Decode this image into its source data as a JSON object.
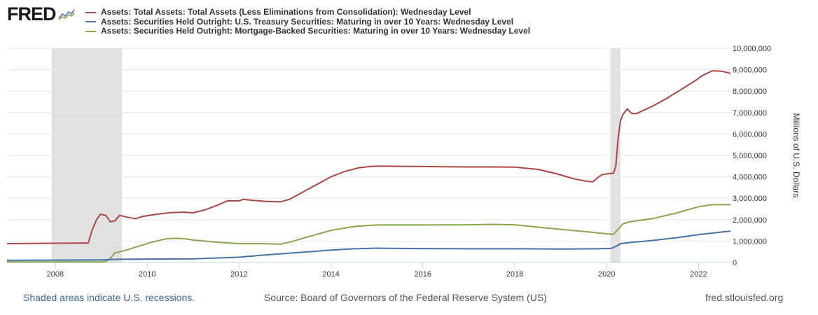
{
  "brand": {
    "name": "FRED",
    "logo_icon": "line-chart-icon"
  },
  "chart_data": {
    "type": "line",
    "title": "",
    "xlabel": "",
    "ylabel": "Millions of U.S. Dollars",
    "xlim": [
      2006.95,
      2022.71
    ],
    "ylim": [
      0,
      10000000
    ],
    "grid": true,
    "legend_position": "top",
    "x_ticks": [
      2008,
      2010,
      2012,
      2014,
      2016,
      2018,
      2020,
      2022
    ],
    "x_tick_labels": [
      "2008",
      "2010",
      "2012",
      "2014",
      "2016",
      "2018",
      "2020",
      "2022"
    ],
    "y_ticks": [
      0,
      1000000,
      2000000,
      3000000,
      4000000,
      5000000,
      6000000,
      7000000,
      8000000,
      9000000,
      10000000
    ],
    "y_tick_labels": [
      "0",
      "1,000,000",
      "2,000,000",
      "3,000,000",
      "4,000,000",
      "5,000,000",
      "6,000,000",
      "7,000,000",
      "8,000,000",
      "9,000,000",
      "10,000,000"
    ],
    "recessions": [
      {
        "start": 2007.92,
        "end": 2009.45
      },
      {
        "start": 2020.08,
        "end": 2020.3
      }
    ],
    "series": [
      {
        "name": "Assets: Total Assets: Total Assets (Less Eliminations from Consolidation): Wednesday Level",
        "color": "#aa4643",
        "x": [
          2006.95,
          2007.5,
          2008.0,
          2008.5,
          2008.72,
          2008.8,
          2008.9,
          2008.98,
          2009.1,
          2009.2,
          2009.3,
          2009.4,
          2009.5,
          2009.6,
          2009.75,
          2009.9,
          2010.2,
          2010.5,
          2010.8,
          2011.0,
          2011.25,
          2011.5,
          2011.75,
          2012.0,
          2012.1,
          2012.3,
          2012.6,
          2012.9,
          2013.1,
          2013.4,
          2013.7,
          2014.0,
          2014.3,
          2014.6,
          2014.85,
          2015.0,
          2015.5,
          2016.0,
          2016.5,
          2017.0,
          2017.5,
          2018.0,
          2018.5,
          2018.9,
          2019.3,
          2019.6,
          2019.7,
          2019.8,
          2019.9,
          2020.05,
          2020.15,
          2020.2,
          2020.25,
          2020.3,
          2020.35,
          2020.45,
          2020.55,
          2020.65,
          2020.8,
          2021.0,
          2021.3,
          2021.6,
          2021.9,
          2022.1,
          2022.3,
          2022.5,
          2022.7
        ],
        "values": [
          880000,
          890000,
          900000,
          910000,
          910000,
          1500000,
          2000000,
          2250000,
          2200000,
          1900000,
          1950000,
          2200000,
          2150000,
          2100000,
          2050000,
          2150000,
          2250000,
          2330000,
          2350000,
          2320000,
          2450000,
          2650000,
          2880000,
          2880000,
          2950000,
          2900000,
          2850000,
          2830000,
          2950000,
          3300000,
          3650000,
          4000000,
          4250000,
          4420000,
          4480000,
          4500000,
          4490000,
          4480000,
          4470000,
          4460000,
          4460000,
          4450000,
          4350000,
          4150000,
          3900000,
          3780000,
          3770000,
          3950000,
          4100000,
          4150000,
          4170000,
          4500000,
          5800000,
          6600000,
          6900000,
          7170000,
          6950000,
          6950000,
          7100000,
          7300000,
          7650000,
          8050000,
          8450000,
          8750000,
          8950000,
          8930000,
          8830000
        ]
      },
      {
        "name": "Assets: Securities Held Outright: U.S. Treasury Securities: Maturing in over 10 Years: Wednesday Level",
        "color": "#4572a7",
        "x": [
          2006.95,
          2008.0,
          2009.0,
          2009.4,
          2010.0,
          2011.0,
          2011.5,
          2012.0,
          2012.5,
          2013.0,
          2013.5,
          2014.0,
          2014.5,
          2015.0,
          2015.3,
          2016.0,
          2017.0,
          2018.0,
          2019.0,
          2019.8,
          2020.1,
          2020.2,
          2020.3,
          2020.5,
          2021.0,
          2021.5,
          2022.0,
          2022.5,
          2022.7
        ],
        "values": [
          100000,
          110000,
          120000,
          150000,
          160000,
          170000,
          210000,
          250000,
          340000,
          420000,
          500000,
          580000,
          640000,
          670000,
          660000,
          650000,
          640000,
          640000,
          630000,
          640000,
          660000,
          750000,
          880000,
          930000,
          1030000,
          1150000,
          1300000,
          1420000,
          1460000
        ]
      },
      {
        "name": "Assets: Securities Held Outright: Mortgage-Backed Securities: Maturing in over 10 Years: Wednesday Level",
        "color": "#89a54e",
        "x": [
          2006.95,
          2008.0,
          2009.0,
          2009.1,
          2009.2,
          2009.3,
          2009.5,
          2009.8,
          2010.1,
          2010.4,
          2010.6,
          2010.8,
          2011.0,
          2011.5,
          2012.0,
          2012.5,
          2012.9,
          2013.1,
          2013.5,
          2014.0,
          2014.5,
          2015.0,
          2016.0,
          2017.0,
          2017.5,
          2018.0,
          2018.5,
          2019.0,
          2019.5,
          2020.0,
          2020.15,
          2020.25,
          2020.35,
          2020.5,
          2021.0,
          2021.5,
          2022.0,
          2022.3,
          2022.7
        ],
        "values": [
          30000,
          30000,
          30000,
          50000,
          200000,
          450000,
          550000,
          750000,
          950000,
          1100000,
          1130000,
          1110000,
          1050000,
          950000,
          880000,
          880000,
          860000,
          950000,
          1200000,
          1500000,
          1680000,
          1750000,
          1750000,
          1760000,
          1780000,
          1760000,
          1650000,
          1550000,
          1450000,
          1340000,
          1320000,
          1550000,
          1800000,
          1900000,
          2050000,
          2300000,
          2600000,
          2700000,
          2700000
        ]
      }
    ]
  },
  "footer": {
    "recession_note": "Shaded areas indicate U.S. recessions.",
    "source": "Source: Board of Governors of the Federal Reserve System (US)",
    "site": "fred.stlouisfed.org"
  }
}
